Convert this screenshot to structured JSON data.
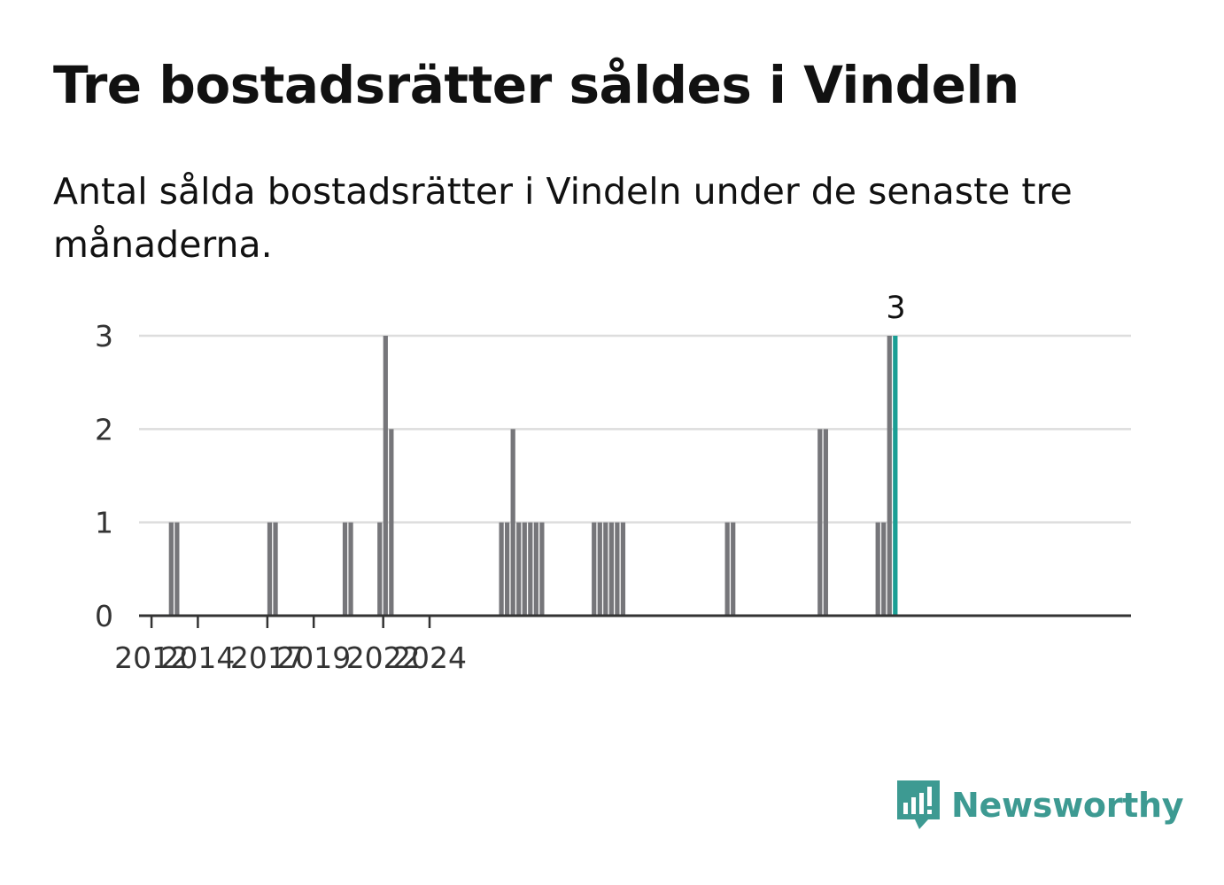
{
  "title": "Tre bostadsrätter såldes i Vindeln",
  "subtitle": "Antal sålda bostadsrätter i Vindeln under de senaste tre månaderna.",
  "brand": {
    "name": "Newsworthy",
    "icon": "newsworthy-logo-icon",
    "color": "#3d9a92"
  },
  "colors": {
    "bar": "#76767a",
    "highlight": "#1a9e94",
    "grid": "#dddddd",
    "axis": "#333333"
  },
  "chart_data": {
    "type": "bar",
    "xlabel": "",
    "ylabel": "",
    "ylim": [
      0,
      3
    ],
    "yticks": [
      0,
      1,
      2,
      3
    ],
    "xticks": [
      "2012",
      "2014",
      "2017",
      "2019",
      "2022",
      "2024"
    ],
    "grid": true,
    "period": "quarter",
    "start": "2011-Q3",
    "values": [
      0,
      0,
      0,
      0,
      0,
      1,
      1,
      0,
      0,
      0,
      0,
      0,
      0,
      0,
      0,
      0,
      0,
      0,
      0,
      0,
      0,
      0,
      1,
      1,
      0,
      0,
      0,
      0,
      0,
      0,
      0,
      0,
      0,
      0,
      0,
      1,
      1,
      0,
      0,
      0,
      0,
      1,
      3,
      2,
      0,
      0,
      0,
      0,
      0,
      0,
      0,
      0,
      0,
      0,
      0,
      0,
      0,
      0,
      0,
      0,
      0,
      0,
      1,
      1,
      2,
      1,
      1,
      1,
      1,
      1,
      0,
      0,
      0,
      0,
      0,
      0,
      0,
      0,
      1,
      1,
      1,
      1,
      1,
      1,
      0,
      0,
      0,
      0,
      0,
      0,
      0,
      0,
      0,
      0,
      0,
      0,
      0,
      0,
      0,
      0,
      0,
      1,
      1,
      0,
      0,
      0,
      0,
      0,
      0,
      0,
      0,
      0,
      0,
      0,
      0,
      0,
      0,
      2,
      2,
      0,
      0,
      0,
      0,
      0,
      0,
      0,
      0,
      1,
      1,
      3,
      3
    ],
    "highlight_value": 3,
    "highlight_label": "3"
  }
}
